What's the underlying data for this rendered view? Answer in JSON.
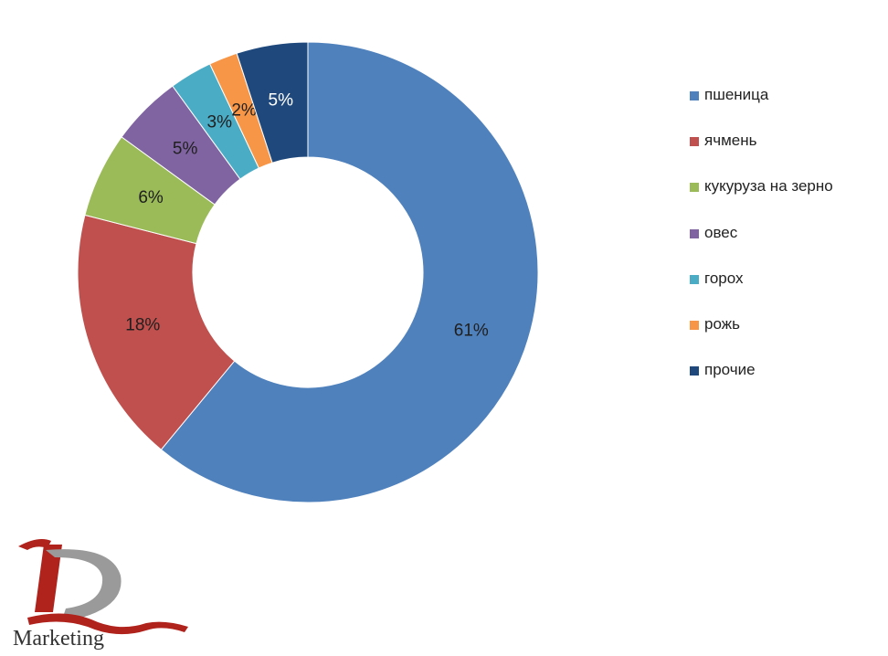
{
  "chart_data": {
    "type": "pie",
    "subtype": "donut",
    "legend_position": "right",
    "series": [
      {
        "label": "пшеница",
        "value": 61,
        "display": "61%",
        "color": "#4f81bd",
        "label_color": "#1f1f1f"
      },
      {
        "label": "ячмень",
        "value": 18,
        "display": "18%",
        "color": "#c0504d",
        "label_color": "#1f1f1f"
      },
      {
        "label": "кукуруза на зерно",
        "value": 6,
        "display": "6%",
        "color": "#9bbb59",
        "label_color": "#1f1f1f"
      },
      {
        "label": "овес",
        "value": 5,
        "display": "5%",
        "color": "#8064a2",
        "label_color": "#1f1f1f"
      },
      {
        "label": "горох",
        "value": 3,
        "display": "3%",
        "color": "#4bacc6",
        "label_color": "#1f1f1f"
      },
      {
        "label": "рожь",
        "value": 2,
        "display": "2%",
        "color": "#f79646",
        "label_color": "#1f1f1f"
      },
      {
        "label": "прочие",
        "value": 5,
        "display": "5%",
        "color": "#1f497d",
        "label_color": "#ffffff"
      }
    ]
  },
  "logo": {
    "text": "Marketing",
    "primary_color": "#b0221c"
  }
}
